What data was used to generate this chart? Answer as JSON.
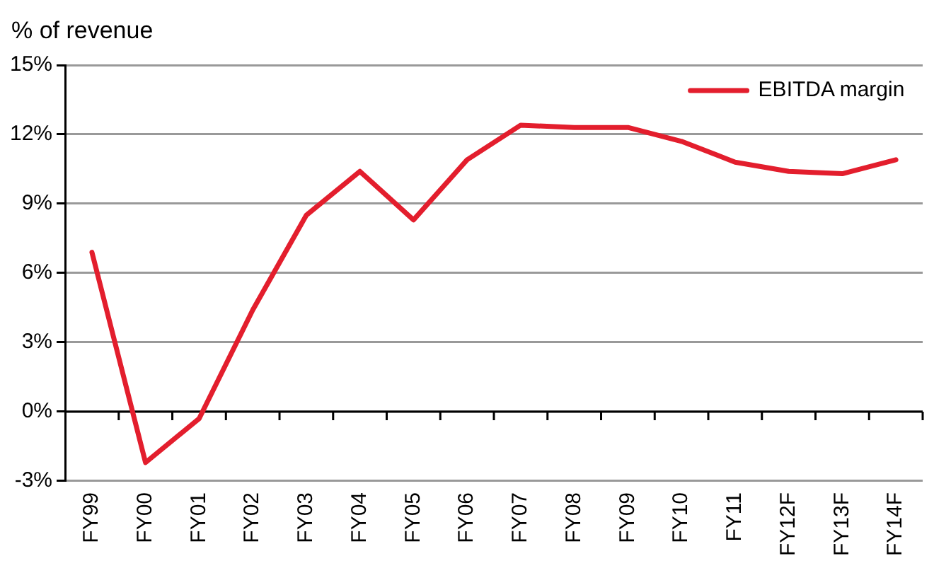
{
  "chart_data": {
    "type": "line",
    "ylabel": "% of revenue",
    "categories": [
      "FY99",
      "FY00",
      "FY01",
      "FY02",
      "FY03",
      "FY04",
      "FY05",
      "FY06",
      "FY07",
      "FY08",
      "FY09",
      "FY10",
      "FY11",
      "FY12F",
      "FY13F",
      "FY14F"
    ],
    "series": [
      {
        "name": "EBITDA margin",
        "color": "#e31e2d",
        "values": [
          6.9,
          -2.2,
          -0.3,
          4.4,
          8.5,
          10.4,
          8.3,
          10.9,
          12.4,
          12.3,
          12.3,
          11.7,
          10.8,
          10.4,
          10.3,
          10.9
        ]
      }
    ],
    "ylim": [
      -3,
      15
    ],
    "yticks": [
      {
        "value": -3,
        "label": "-3%"
      },
      {
        "value": 0,
        "label": "0%"
      },
      {
        "value": 3,
        "label": "3%"
      },
      {
        "value": 6,
        "label": "6%"
      },
      {
        "value": 9,
        "label": "9%"
      },
      {
        "value": 12,
        "label": "12%"
      },
      {
        "value": 15,
        "label": "15%"
      }
    ],
    "grid": "y",
    "legend": "top right",
    "marker": "none",
    "line_style": "solid"
  }
}
